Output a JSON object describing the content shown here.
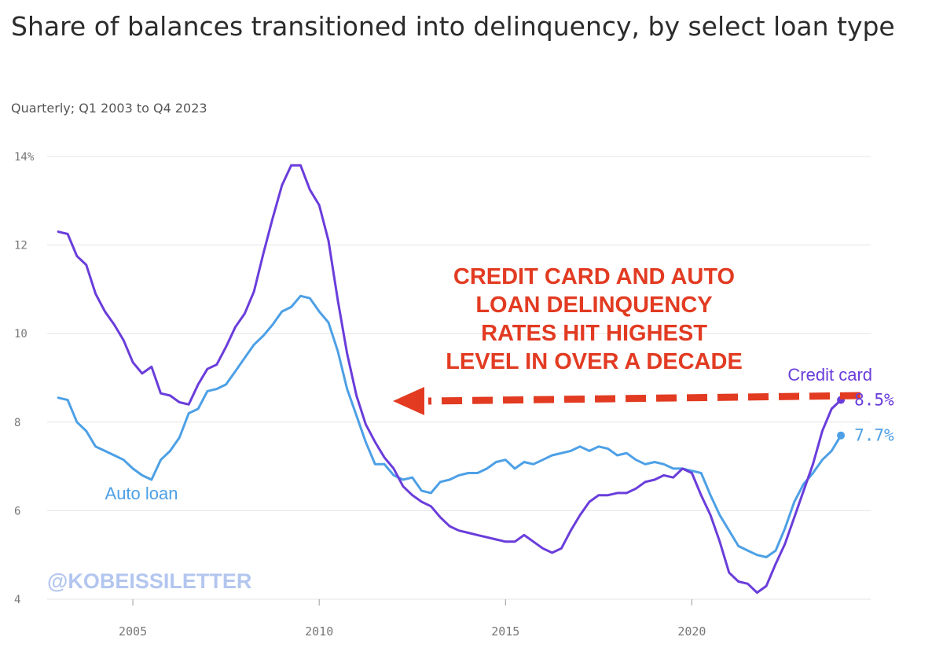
{
  "title": "Share of balances transitioned into delinquency, by select loan type",
  "subtitle": "Quarterly; Q1 2003 to Q4 2023",
  "watermark": "@KOBEISSILETTER",
  "annotation": [
    "CREDIT CARD AND AUTO",
    "LOAN DELINQUENCY",
    "RATES HIT HIGHEST",
    "LEVEL IN OVER A DECADE"
  ],
  "colors": {
    "credit_card": "#6a3ddb",
    "auto_loan": "#4da0e6",
    "annotation": "#e23b22",
    "grid": "#e4e4e4",
    "watermark": "#b3c6ef"
  },
  "chart_data": {
    "type": "line",
    "x_start": "Q1 2003",
    "x_end": "Q4 2023",
    "x_ticks": [
      2005,
      2010,
      2015,
      2020
    ],
    "x_tick_labels": [
      "2005",
      "2010",
      "2015",
      "2020"
    ],
    "y_ticks": [
      4,
      6,
      8,
      10,
      12,
      14
    ],
    "y_tick_labels": [
      "4",
      "6",
      "8",
      "10",
      "12",
      "14%"
    ],
    "ylim": [
      4,
      14
    ],
    "xlim": [
      2002.7,
      2024.8
    ],
    "grid": true,
    "series": [
      {
        "name": "Credit card",
        "end_label": "8.5%",
        "color": "#6a3ddb",
        "values": [
          12.3,
          12.25,
          11.75,
          11.55,
          10.9,
          10.5,
          10.2,
          9.85,
          9.35,
          9.1,
          9.25,
          8.65,
          8.6,
          8.45,
          8.4,
          8.85,
          9.2,
          9.3,
          9.7,
          10.15,
          10.45,
          10.95,
          11.8,
          12.6,
          13.35,
          13.8,
          13.8,
          13.25,
          12.9,
          12.1,
          10.75,
          9.55,
          8.6,
          7.95,
          7.55,
          7.2,
          6.95,
          6.55,
          6.35,
          6.2,
          6.1,
          5.85,
          5.65,
          5.55,
          5.5,
          5.45,
          5.4,
          5.35,
          5.3,
          5.3,
          5.45,
          5.3,
          5.15,
          5.05,
          5.15,
          5.55,
          5.9,
          6.2,
          6.35,
          6.35,
          6.4,
          6.4,
          6.5,
          6.65,
          6.7,
          6.8,
          6.75,
          6.95,
          6.85,
          6.35,
          5.9,
          5.3,
          4.6,
          4.4,
          4.35,
          4.15,
          4.3,
          4.8,
          5.25,
          5.85,
          6.45,
          7.05,
          7.8,
          8.3,
          8.5
        ]
      },
      {
        "name": "Auto loan",
        "end_label": "7.7%",
        "color": "#4da0e6",
        "values": [
          8.55,
          8.5,
          8.0,
          7.8,
          7.45,
          7.35,
          7.25,
          7.15,
          6.95,
          6.8,
          6.7,
          7.15,
          7.35,
          7.65,
          8.2,
          8.3,
          8.7,
          8.75,
          8.85,
          9.15,
          9.45,
          9.75,
          9.95,
          10.2,
          10.5,
          10.6,
          10.85,
          10.8,
          10.5,
          10.25,
          9.6,
          8.75,
          8.15,
          7.55,
          7.05,
          7.05,
          6.8,
          6.7,
          6.75,
          6.45,
          6.4,
          6.65,
          6.7,
          6.8,
          6.85,
          6.85,
          6.95,
          7.1,
          7.15,
          6.95,
          7.1,
          7.05,
          7.15,
          7.25,
          7.3,
          7.35,
          7.45,
          7.35,
          7.45,
          7.4,
          7.25,
          7.3,
          7.15,
          7.05,
          7.1,
          7.05,
          6.95,
          6.95,
          6.9,
          6.85,
          6.35,
          5.9,
          5.55,
          5.2,
          5.1,
          5.0,
          4.95,
          5.1,
          5.6,
          6.2,
          6.6,
          6.85,
          7.15,
          7.35,
          7.7
        ]
      }
    ]
  }
}
